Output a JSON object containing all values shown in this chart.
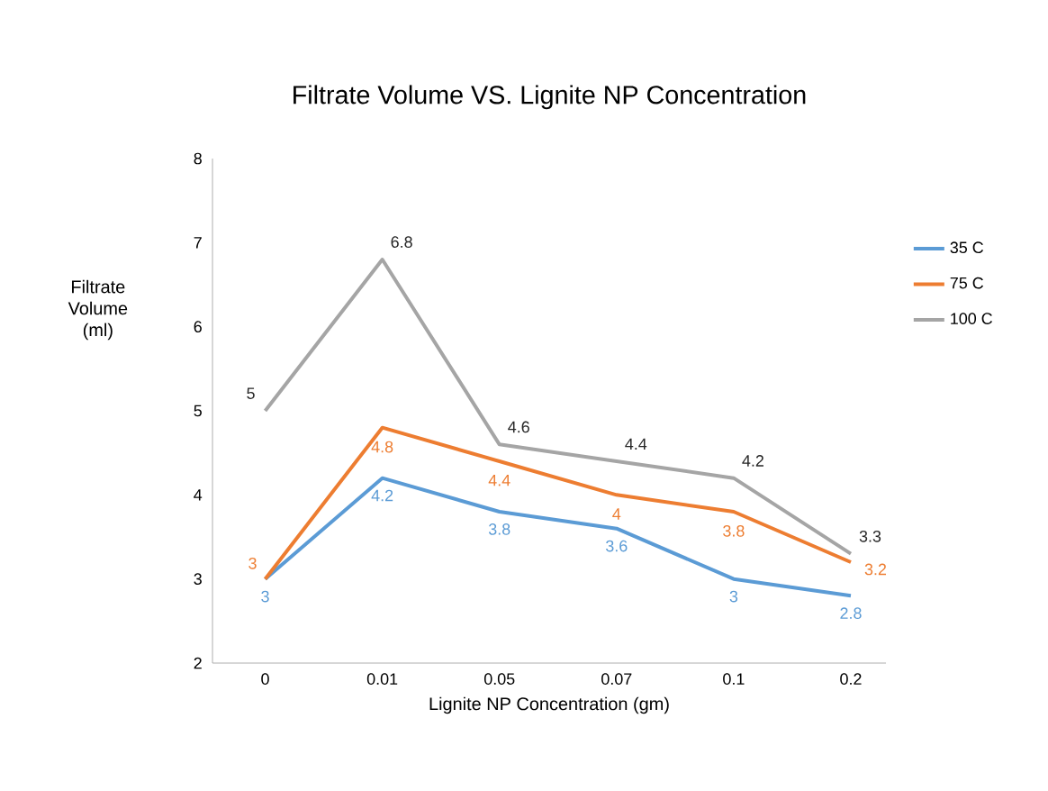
{
  "chart_data": {
    "type": "line",
    "title": "Filtrate Volume VS. Lignite NP Concentration",
    "xlabel": "Lignite NP Concentration (gm)",
    "ylabel": "Filtrate Volume (ml)",
    "categories": [
      "0",
      "0.01",
      "0.05",
      "0.07",
      "0.1",
      "0.2"
    ],
    "series": [
      {
        "name": "35 C",
        "color": "#5b9bd5",
        "values": [
          3,
          4.2,
          3.8,
          3.6,
          3,
          2.8
        ]
      },
      {
        "name": "75 C",
        "color": "#ed7d31",
        "values": [
          3,
          4.8,
          4.4,
          4,
          3.8,
          3.2
        ]
      },
      {
        "name": "100 C",
        "color": "#a5a5a5",
        "values": [
          5,
          6.8,
          4.6,
          4.4,
          4.2,
          3.3
        ]
      }
    ],
    "ylim": [
      2,
      8
    ],
    "yticks": [
      2,
      3,
      4,
      5,
      6,
      7,
      8
    ],
    "data_labels": true,
    "legend": "right",
    "marker": "none",
    "line_style": "solid"
  }
}
